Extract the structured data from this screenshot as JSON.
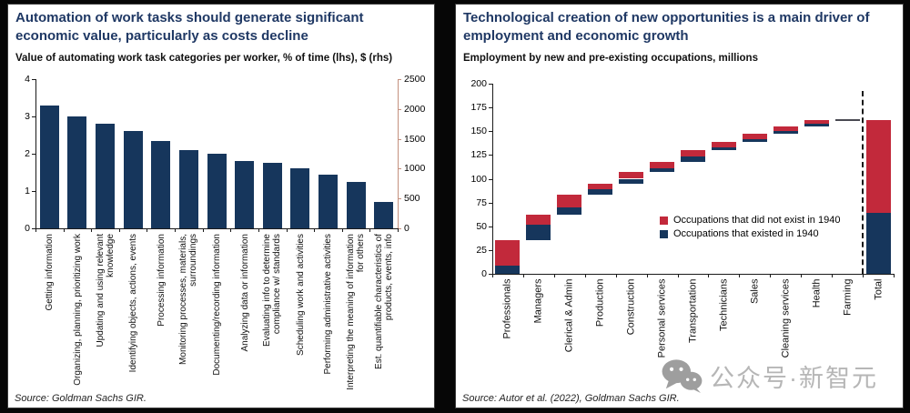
{
  "colors": {
    "navy": "#16365C",
    "red": "#C2293B",
    "title_blue": "#1F3864",
    "axis_black": "#1a1a1a",
    "secondary_axis_line": "#C4907E",
    "flat_segment_gray": "#4a4a52",
    "watermark_gray": "#b6b6b6",
    "panel_background": "#ffffff",
    "page_background": "#060606"
  },
  "chart_data": [
    {
      "id": "automation-task-value-bar-chart",
      "type": "bar",
      "title": "Automation of work tasks should generate significant economic value, particularly as costs decline",
      "subtitle": "Value of automating work task categories per worker, % of time (lhs), $ (rhs)",
      "source": "Source: Goldman Sachs GIR.",
      "categories": [
        "Getting information",
        "Organizing, planning, prioritizing work",
        "Updating and using relevant knowledge",
        "Identifying objects, actions, events",
        "Processing information",
        "Monitoring processes, materials, surroundings",
        "Documenting/recording information",
        "Analyzing data or information",
        "Evaluating info to determine compliance w/ standards",
        "Scheduling work and activities",
        "Performing administrative activities",
        "Interpreting the meaning of information for others",
        "Est. quantifiable characteristics of products, events, info"
      ],
      "values": [
        3.3,
        3.0,
        2.8,
        2.6,
        2.35,
        2.1,
        2.0,
        1.8,
        1.75,
        1.6,
        1.45,
        1.25,
        0.7
      ],
      "ylim_left": [
        0,
        4
      ],
      "yticks_left": [
        0,
        1,
        2,
        3,
        4
      ],
      "ylim_right": [
        0,
        2500
      ],
      "yticks_right": [
        0,
        500,
        1000,
        1500,
        2000,
        2500
      ],
      "grid": false,
      "legend_position": "none",
      "bar_color": "#16365C"
    },
    {
      "id": "employment-new-occupations-waterfall",
      "type": "waterfall",
      "title": "Technological creation of new opportunities is a main driver of employment and economic growth",
      "subtitle": "Employment by new and pre-existing occupations, millions",
      "source": "Source: Autor et al. (2022), Goldman Sachs GIR.",
      "categories": [
        "Professionals",
        "Managers",
        "Clerical & Admin",
        "Production",
        "Construction",
        "Personal services",
        "Transportation",
        "Technicians",
        "Sales",
        "Cleaning services",
        "Health",
        "Farming",
        "Total"
      ],
      "bases": [
        0,
        35,
        62,
        83,
        95,
        107,
        118,
        130,
        139,
        147,
        155,
        162,
        0
      ],
      "series": [
        {
          "name": "Occupations that existed in 1940",
          "color": "#16365C",
          "values": [
            9,
            17,
            8,
            6,
            5,
            4,
            5,
            3,
            3,
            3,
            3,
            0,
            64
          ]
        },
        {
          "name": "Occupations that did not exist in 1940",
          "color": "#C2293B",
          "values": [
            26,
            10,
            13,
            6,
            7,
            7,
            7,
            6,
            5,
            5,
            4,
            0,
            98
          ]
        }
      ],
      "legend_items": [
        {
          "label": "Occupations that did not exist in 1940",
          "color": "#C2293B"
        },
        {
          "label": "Occupations that existed in 1940",
          "color": "#16365C"
        }
      ],
      "ylim": [
        0,
        200
      ],
      "yticks": [
        0,
        25,
        50,
        75,
        100,
        125,
        150,
        175,
        200
      ],
      "separator_dashed_before": "Total",
      "grid": false,
      "legend_position": "inside-right"
    }
  ],
  "watermark": {
    "icon": "wechat-icon",
    "text": "公众号·新智元"
  }
}
